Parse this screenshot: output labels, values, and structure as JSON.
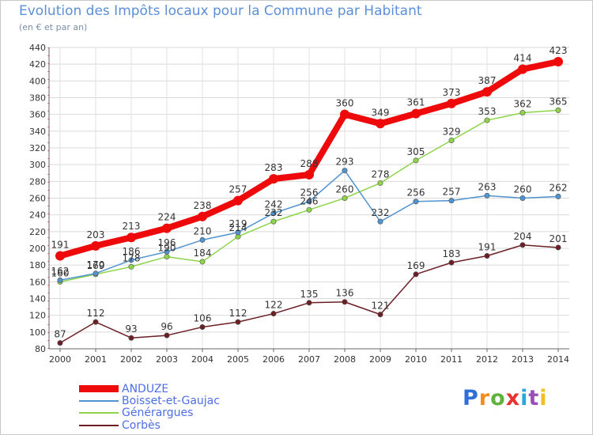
{
  "title": "Evolution des Impôts locaux pour la Commune par Habitant",
  "subtitle": "(en € et par an)",
  "logo": {
    "letters": [
      "P",
      "r",
      "o",
      "x",
      "i",
      "t",
      "i"
    ],
    "colors": [
      "#2e6fd8",
      "#f28c1e",
      "#5fb33c",
      "#e8322d",
      "#2aa8d8",
      "#9a4fb8",
      "#f0c020"
    ]
  },
  "chart_data": {
    "type": "line",
    "title": "Evolution des Impôts locaux pour la Commune par Habitant",
    "subtitle": "(en € et par an)",
    "xlabel": "",
    "ylabel": "",
    "x": [
      "2000",
      "2001",
      "2002",
      "2003",
      "2004",
      "2005",
      "2006",
      "2007",
      "2008",
      "2009",
      "2010",
      "2011",
      "2012",
      "2013",
      "2014"
    ],
    "ylim": [
      80,
      440
    ],
    "yticks": [
      80,
      100,
      120,
      140,
      160,
      180,
      200,
      220,
      240,
      260,
      280,
      300,
      320,
      340,
      360,
      380,
      400,
      420,
      440
    ],
    "grid": true,
    "legend_position": "bottom-left",
    "series": [
      {
        "name": "ANDUZE",
        "color": "#ee0a0a",
        "values": [
          191,
          203,
          213,
          224,
          238,
          257,
          283,
          288,
          360,
          349,
          361,
          373,
          387,
          414,
          423
        ]
      },
      {
        "name": "Boisset-et-Gaujac",
        "color": "#4f93cf",
        "values": [
          162,
          170,
          186,
          196,
          210,
          219,
          242,
          256,
          293,
          232,
          256,
          257,
          263,
          260,
          262
        ]
      },
      {
        "name": "Générargues",
        "color": "#8ed44a",
        "values": [
          160,
          169,
          178,
          190,
          184,
          214,
          232,
          246,
          260,
          278,
          305,
          329,
          353,
          362,
          365
        ]
      },
      {
        "name": "Corbès",
        "color": "#6b1f24",
        "values": [
          87,
          112,
          93,
          96,
          106,
          112,
          122,
          135,
          136,
          121,
          169,
          183,
          191,
          204,
          201
        ]
      }
    ]
  }
}
